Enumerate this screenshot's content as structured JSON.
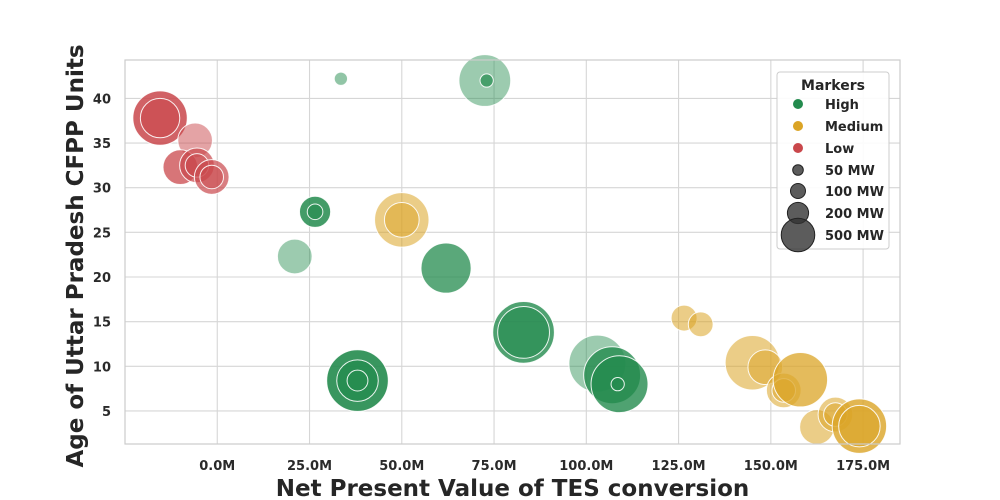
{
  "chart_data": {
    "type": "scatter",
    "xlabel": "Net Present Value of TES conversion",
    "ylabel": "Age of Uttar Pradesh CFPP Units",
    "xlim": [
      -25000000,
      185000000
    ],
    "ylim": [
      1.3,
      44.3
    ],
    "x_ticks": [
      0,
      25000000,
      50000000,
      75000000,
      100000000,
      125000000,
      150000000,
      175000000
    ],
    "x_tick_labels": [
      "0.0M",
      "25.0M",
      "50.0M",
      "75.0M",
      "100.0M",
      "125.0M",
      "150.0M",
      "175.0M"
    ],
    "y_ticks": [
      5,
      10,
      15,
      20,
      25,
      30,
      35,
      40
    ],
    "y_tick_labels": [
      "5",
      "10",
      "15",
      "20",
      "25",
      "30",
      "35",
      "40"
    ],
    "grid": true,
    "legend": {
      "title": "Markers",
      "placement": "top-right",
      "categories": [
        {
          "label": "High",
          "color": "#238b4e"
        },
        {
          "label": "Medium",
          "color": "#dba425"
        },
        {
          "label": "Low",
          "color": "#c9474b"
        }
      ],
      "sizes": [
        {
          "label": "50 MW",
          "mw": 50
        },
        {
          "label": "100 MW",
          "mw": 100
        },
        {
          "label": "200 MW",
          "mw": 200
        },
        {
          "label": "500 MW",
          "mw": 500
        }
      ]
    },
    "series": [
      {
        "name": "High",
        "color": "#238b4e",
        "points": [
          {
            "x": 33500000,
            "y": 42.2,
            "mw": 20,
            "alpha": 0.5
          },
          {
            "x": 72500000,
            "y": 42.0,
            "mw": 450,
            "alpha": 0.45
          },
          {
            "x": 73000000,
            "y": 42.0,
            "mw": 20,
            "alpha": 0.7
          },
          {
            "x": 26500000,
            "y": 27.3,
            "mw": 150,
            "alpha": 0.85
          },
          {
            "x": 26500000,
            "y": 27.3,
            "mw": 30,
            "alpha": 0.6
          },
          {
            "x": 21000000,
            "y": 22.3,
            "mw": 190,
            "alpha": 0.45
          },
          {
            "x": 62000000,
            "y": 21.0,
            "mw": 420,
            "alpha": 0.75
          },
          {
            "x": 83000000,
            "y": 13.8,
            "mw": 650,
            "alpha": 0.8
          },
          {
            "x": 83000000,
            "y": 13.8,
            "mw": 450,
            "alpha": 0.6
          },
          {
            "x": 103000000,
            "y": 10.3,
            "mw": 550,
            "alpha": 0.45
          },
          {
            "x": 107000000,
            "y": 9.0,
            "mw": 550,
            "alpha": 0.8
          },
          {
            "x": 109000000,
            "y": 8.0,
            "mw": 550,
            "alpha": 0.8
          },
          {
            "x": 108500000,
            "y": 8.0,
            "mw": 20,
            "alpha": 0.6
          },
          {
            "x": 38000000,
            "y": 8.4,
            "mw": 650,
            "alpha": 0.9
          },
          {
            "x": 38000000,
            "y": 8.4,
            "mw": 280,
            "alpha": 0.75
          },
          {
            "x": 38000000,
            "y": 8.4,
            "mw": 60,
            "alpha": 0.5
          }
        ]
      },
      {
        "name": "Medium",
        "color": "#dba425",
        "points": [
          {
            "x": 50000000,
            "y": 26.4,
            "mw": 500,
            "alpha": 0.55
          },
          {
            "x": 50000000,
            "y": 26.4,
            "mw": 190,
            "alpha": 0.5
          },
          {
            "x": 126500000,
            "y": 15.4,
            "mw": 100,
            "alpha": 0.55
          },
          {
            "x": 131000000,
            "y": 14.7,
            "mw": 90,
            "alpha": 0.55
          },
          {
            "x": 145000000,
            "y": 10.4,
            "mw": 500,
            "alpha": 0.55
          },
          {
            "x": 148500000,
            "y": 9.9,
            "mw": 190,
            "alpha": 0.5
          },
          {
            "x": 153500000,
            "y": 7.3,
            "mw": 190,
            "alpha": 0.55
          },
          {
            "x": 153500000,
            "y": 7.3,
            "mw": 80,
            "alpha": 0.5
          },
          {
            "x": 158000000,
            "y": 8.5,
            "mw": 500,
            "alpha": 0.75
          },
          {
            "x": 162500000,
            "y": 3.2,
            "mw": 190,
            "alpha": 0.55
          },
          {
            "x": 167500000,
            "y": 4.6,
            "mw": 190,
            "alpha": 0.55
          },
          {
            "x": 167500000,
            "y": 4.6,
            "mw": 80,
            "alpha": 0.5
          },
          {
            "x": 174000000,
            "y": 3.3,
            "mw": 500,
            "alpha": 0.8
          },
          {
            "x": 174000000,
            "y": 3.3,
            "mw": 280,
            "alpha": 0.6
          }
        ]
      },
      {
        "name": "Low",
        "color": "#c9474b",
        "points": [
          {
            "x": -15500000,
            "y": 37.8,
            "mw": 500,
            "alpha": 0.85
          },
          {
            "x": -15500000,
            "y": 37.8,
            "mw": 250,
            "alpha": 0.6
          },
          {
            "x": -6000000,
            "y": 35.3,
            "mw": 190,
            "alpha": 0.5
          },
          {
            "x": -10000000,
            "y": 32.3,
            "mw": 190,
            "alpha": 0.75
          },
          {
            "x": -5500000,
            "y": 32.5,
            "mw": 190,
            "alpha": 0.7
          },
          {
            "x": -5500000,
            "y": 32.5,
            "mw": 80,
            "alpha": 0.5
          },
          {
            "x": -1500000,
            "y": 31.2,
            "mw": 190,
            "alpha": 0.7
          },
          {
            "x": -1500000,
            "y": 31.2,
            "mw": 80,
            "alpha": 0.5
          }
        ]
      }
    ]
  }
}
